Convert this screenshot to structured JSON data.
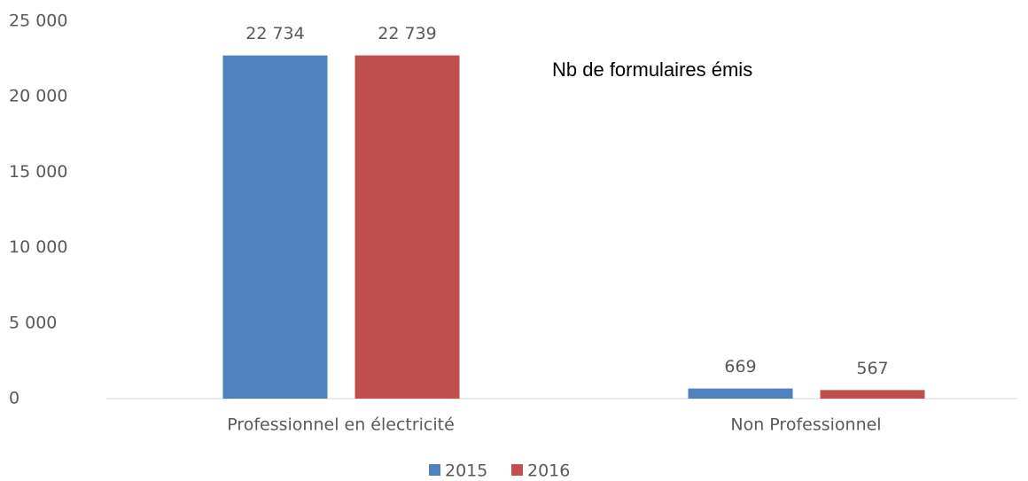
{
  "chart_data": {
    "type": "bar",
    "annotation": "Nb de formulaires émis",
    "categories": [
      "Professionnel en électricité",
      "Non Professionnel"
    ],
    "series": [
      {
        "name": "2015",
        "color": "#4f81bd",
        "values": [
          22734,
          669
        ],
        "value_labels": [
          "22 734",
          "669"
        ]
      },
      {
        "name": "2016",
        "color": "#c0504d",
        "values": [
          22739,
          567
        ],
        "value_labels": [
          "22 739",
          "567"
        ]
      }
    ],
    "ylim": [
      0,
      25000
    ],
    "yticks": [
      {
        "value": 0,
        "label": "0"
      },
      {
        "value": 5000,
        "label": "5 000"
      },
      {
        "value": 10000,
        "label": "10 000"
      },
      {
        "value": 15000,
        "label": "15 000"
      },
      {
        "value": 20000,
        "label": "20 000"
      },
      {
        "value": 25000,
        "label": "25 000"
      }
    ],
    "legend": "bottom"
  }
}
